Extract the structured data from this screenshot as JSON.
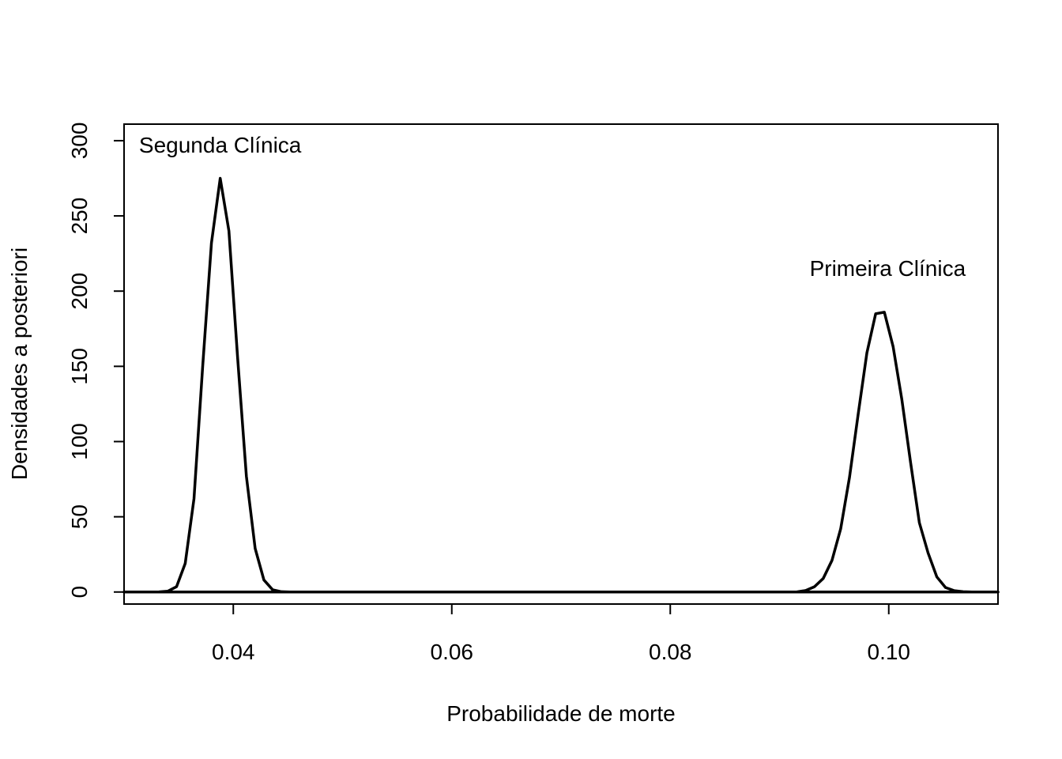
{
  "chart_data": {
    "type": "line",
    "title": "",
    "xlabel": "Probabilidade de morte",
    "ylabel": "Densidades a posteriori",
    "xlim": [
      0.03,
      0.11
    ],
    "ylim": [
      -8,
      311
    ],
    "x_ticks": [
      0.04,
      0.06,
      0.08,
      0.1
    ],
    "x_tick_labels": [
      "0.04",
      "0.06",
      "0.08",
      "0.10"
    ],
    "y_ticks": [
      0,
      50,
      100,
      150,
      200,
      250,
      300
    ],
    "y_tick_labels": [
      "0",
      "50",
      "100",
      "150",
      "200",
      "250",
      "300"
    ],
    "grid": false,
    "line_color": "#000000",
    "series": [
      {
        "name": "Segunda Clínica",
        "x": [
          0.03,
          0.0308,
          0.0316,
          0.0324,
          0.0332,
          0.034,
          0.0348,
          0.0356,
          0.0364,
          0.0372,
          0.038,
          0.0388,
          0.0396,
          0.0404,
          0.0412,
          0.042,
          0.0428,
          0.0436,
          0.0444,
          0.0452,
          0.046,
          0.05,
          0.06,
          0.07,
          0.08,
          0.09,
          0.1,
          0.11
        ],
        "values": [
          0,
          0,
          0,
          0,
          0.1,
          0.5,
          3.5,
          19,
          62,
          150,
          232,
          275,
          240,
          155,
          77,
          29,
          8,
          1.5,
          0.2,
          0,
          0,
          0,
          0,
          0,
          0,
          0,
          0,
          0
        ]
      },
      {
        "name": "Primeira Clínica",
        "x": [
          0.03,
          0.04,
          0.05,
          0.06,
          0.07,
          0.08,
          0.09,
          0.0916,
          0.0924,
          0.0932,
          0.094,
          0.0948,
          0.0956,
          0.0964,
          0.0972,
          0.098,
          0.0988,
          0.0996,
          0.1004,
          0.1012,
          0.102,
          0.1028,
          0.1036,
          0.1044,
          0.1052,
          0.106,
          0.1068,
          0.1076,
          0.1084,
          0.11
        ],
        "values": [
          0,
          0,
          0,
          0,
          0,
          0,
          0,
          0.1,
          1,
          3.5,
          9,
          21,
          42,
          76,
          118,
          159,
          185,
          186,
          163,
          128,
          86,
          46,
          26,
          10,
          3,
          0.9,
          0.2,
          0,
          0,
          0
        ]
      }
    ],
    "annotations": [
      {
        "text": "Segunda Clínica",
        "x": 0.0388,
        "y": 292
      },
      {
        "text": "Primeira Clínica",
        "x": 0.0999,
        "y": 210
      }
    ]
  }
}
